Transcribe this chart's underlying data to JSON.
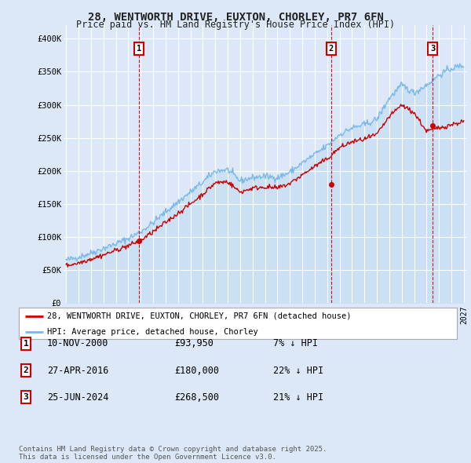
{
  "title": "28, WENTWORTH DRIVE, EUXTON, CHORLEY, PR7 6FN",
  "subtitle": "Price paid vs. HM Land Registry's House Price Index (HPI)",
  "yticks": [
    0,
    50000,
    100000,
    150000,
    200000,
    250000,
    300000,
    350000,
    400000
  ],
  "ytick_labels": [
    "£0",
    "£50K",
    "£100K",
    "£150K",
    "£200K",
    "£250K",
    "£300K",
    "£350K",
    "£400K"
  ],
  "x_start_year": 1995,
  "x_end_year": 2027,
  "background_color": "#dce8f8",
  "plot_bg_color": "#dce8f8",
  "grid_color": "#ffffff",
  "hpi_color": "#7ab8e8",
  "hpi_fill_color": "#b8d7f0",
  "price_color": "#cc0000",
  "sale1_date": 2000.86,
  "sale1_price": 93950,
  "sale1_label": "1",
  "sale2_date": 2016.33,
  "sale2_price": 180000,
  "sale2_label": "2",
  "sale3_date": 2024.49,
  "sale3_price": 268500,
  "sale3_label": "3",
  "legend_line1": "28, WENTWORTH DRIVE, EUXTON, CHORLEY, PR7 6FN (detached house)",
  "legend_line2": "HPI: Average price, detached house, Chorley",
  "table": [
    [
      "1",
      "10-NOV-2000",
      "£93,950",
      "7% ↓ HPI"
    ],
    [
      "2",
      "27-APR-2016",
      "£180,000",
      "22% ↓ HPI"
    ],
    [
      "3",
      "25-JUN-2024",
      "£268,500",
      "21% ↓ HPI"
    ]
  ],
  "footnote": "Contains HM Land Registry data © Crown copyright and database right 2025.\nThis data is licensed under the Open Government Licence v3.0."
}
